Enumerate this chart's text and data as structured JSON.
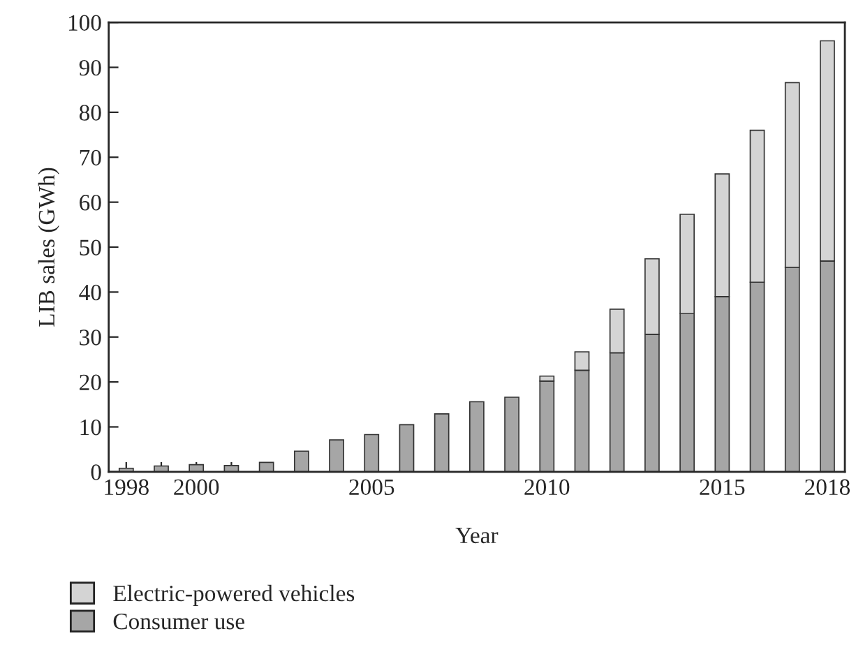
{
  "chart_data": {
    "type": "bar",
    "stacked": true,
    "xlabel": "Year",
    "ylabel": "LIB sales (GWh)",
    "x": [
      1998,
      1999,
      2000,
      2001,
      2002,
      2003,
      2004,
      2005,
      2006,
      2007,
      2008,
      2009,
      2010,
      2011,
      2012,
      2013,
      2014,
      2015,
      2016,
      2017,
      2018
    ],
    "series": [
      {
        "name": "Consumer use",
        "color": "#a6a6a6",
        "values": [
          0.8,
          1.3,
          1.6,
          1.4,
          2.1,
          4.6,
          7.1,
          8.3,
          10.5,
          12.9,
          15.6,
          16.6,
          20.2,
          22.6,
          26.5,
          30.6,
          35.2,
          39.0,
          42.2,
          45.5,
          46.9
        ]
      },
      {
        "name": "Electric-powered vehicles",
        "color": "#d4d4d4",
        "values": [
          null,
          null,
          null,
          null,
          null,
          null,
          null,
          null,
          null,
          null,
          null,
          null,
          1.1,
          4.1,
          9.7,
          16.8,
          22.1,
          27.3,
          33.8,
          41.1,
          49.0
        ]
      }
    ],
    "xlim": [
      1997.5,
      2018.5
    ],
    "ylim": [
      0,
      100
    ],
    "xticks": [
      1998,
      {
        "value": 1999,
        "label": null
      },
      2000,
      {
        "value": 2001,
        "label": null
      },
      {
        "value": 2002,
        "label": null
      },
      {
        "value": 2003,
        "label": null
      },
      {
        "value": 2004,
        "label": null
      },
      2005,
      {
        "value": 2006,
        "label": null
      },
      {
        "value": 2007,
        "label": null
      },
      {
        "value": 2008,
        "label": null
      },
      {
        "value": 2009,
        "label": null
      },
      2010,
      {
        "value": 2011,
        "label": null
      },
      {
        "value": 2012,
        "label": null
      },
      {
        "value": 2013,
        "label": null
      },
      {
        "value": 2014,
        "label": null
      },
      2015,
      {
        "value": 2016,
        "label": null
      },
      {
        "value": 2017,
        "label": null
      },
      2018
    ],
    "yticks": [
      0,
      10,
      20,
      30,
      40,
      50,
      60,
      70,
      80,
      90,
      100
    ],
    "legend": "bottom left",
    "grid": false
  }
}
